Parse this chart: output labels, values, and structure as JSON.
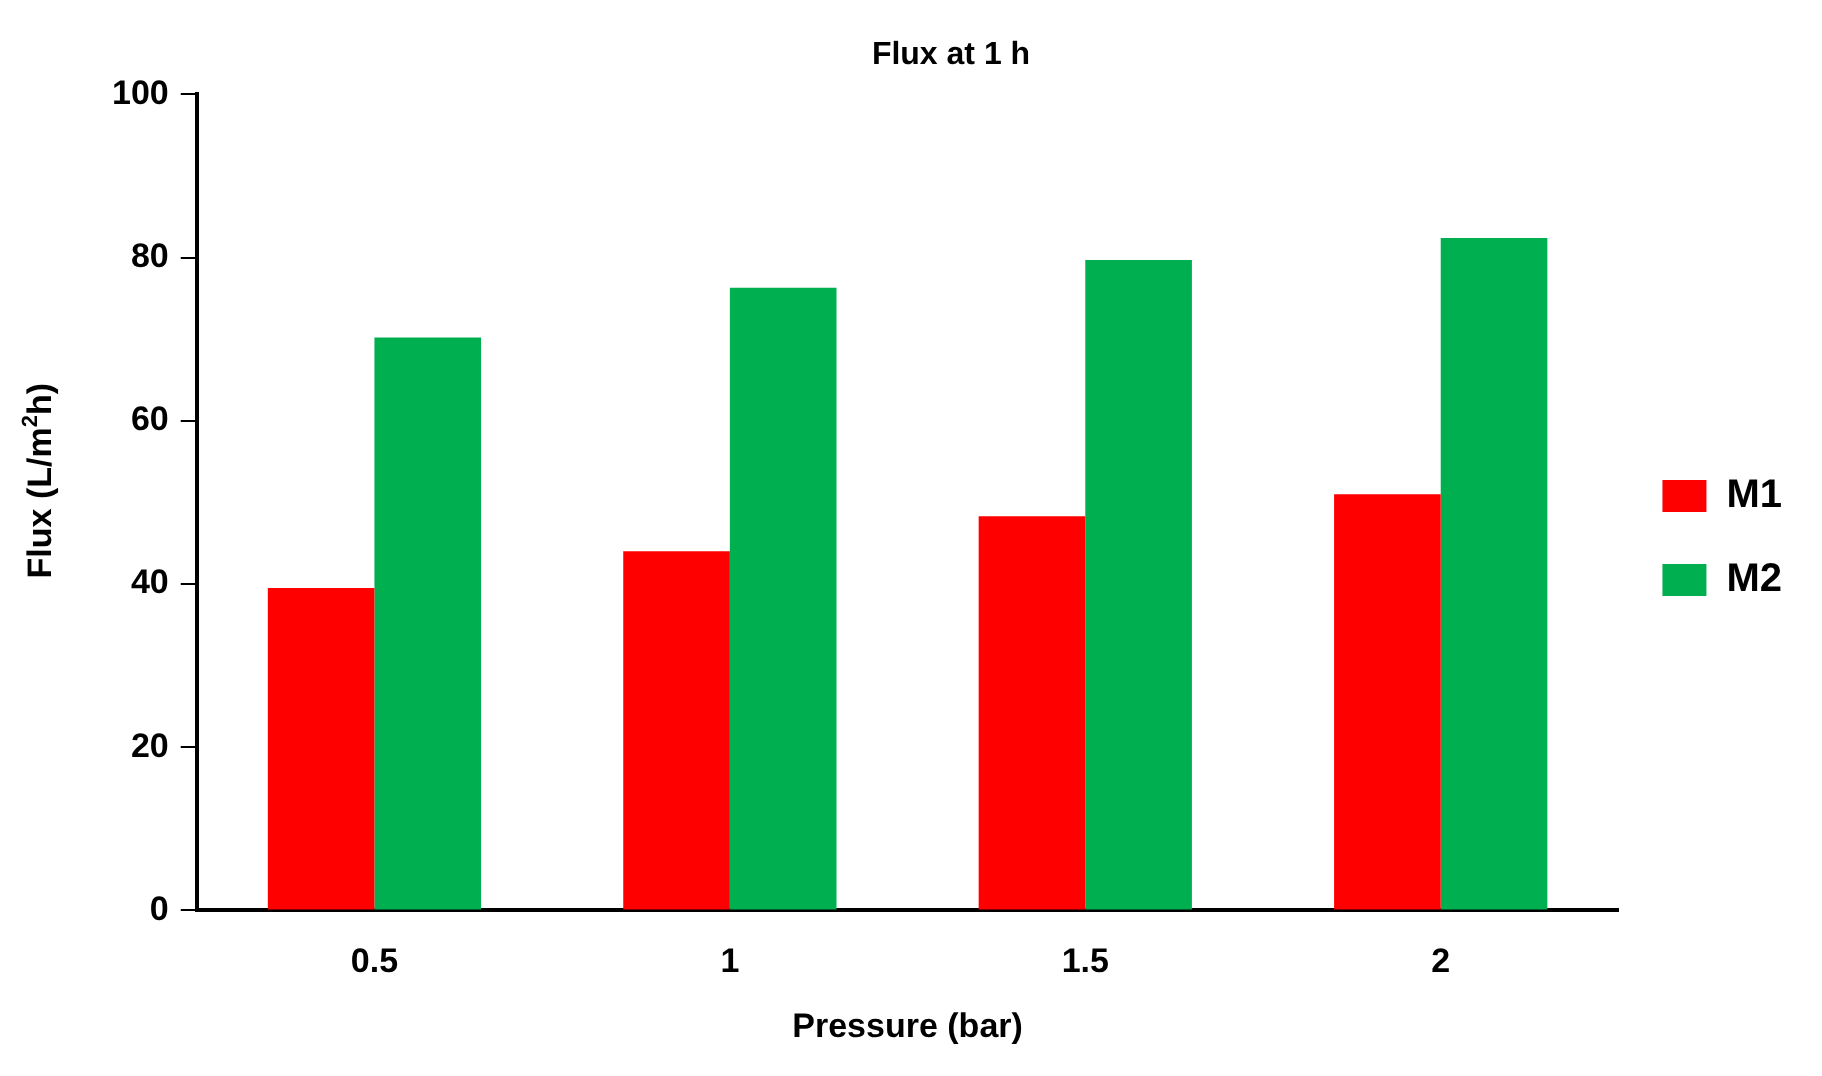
{
  "chart_data": {
    "type": "bar",
    "title": "Flux at 1 h",
    "xlabel": "Pressure (bar)",
    "ylabel": "Flux (L/m$^{2}$h)",
    "categories": [
      "0.5",
      "1",
      "1.5",
      "2"
    ],
    "series": [
      {
        "name": "M1",
        "color": "#ff0000",
        "values": [
          39.5,
          44.0,
          48.3,
          51.0
        ]
      },
      {
        "name": "M2",
        "color": "#00b050",
        "values": [
          70.2,
          76.3,
          79.7,
          82.4
        ]
      }
    ],
    "ylim": [
      0,
      100
    ],
    "yticks": [
      0,
      20,
      40,
      60,
      80,
      100
    ],
    "grid": false,
    "legend": "right"
  }
}
